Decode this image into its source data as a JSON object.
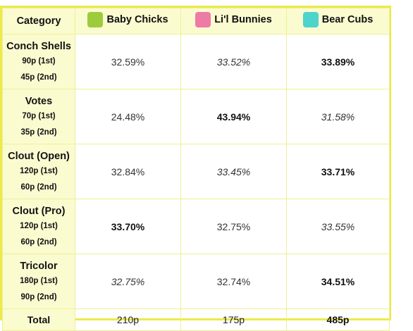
{
  "header": {
    "category_label": "Category",
    "teams": [
      {
        "name": "Baby Chicks",
        "color": "#9ccc3c"
      },
      {
        "name": "Li'l Bunnies",
        "color": "#ee7aa6"
      },
      {
        "name": "Bear Cubs",
        "color": "#4fd3cd"
      }
    ]
  },
  "rows": [
    {
      "category": "Conch Shells",
      "first": "90p (1st)",
      "second": "45p (2nd)",
      "values": [
        "32.59%",
        "33.52%",
        "33.89%"
      ]
    },
    {
      "category": "Votes",
      "first": "70p (1st)",
      "second": "35p (2nd)",
      "values": [
        "24.48%",
        "43.94%",
        "31.58%"
      ]
    },
    {
      "category": "Clout (Open)",
      "first": "120p (1st)",
      "second": "60p (2nd)",
      "values": [
        "32.84%",
        "33.45%",
        "33.71%"
      ]
    },
    {
      "category": "Clout (Pro)",
      "first": "120p (1st)",
      "second": "60p (2nd)",
      "values": [
        "33.70%",
        "32.75%",
        "33.55%"
      ]
    },
    {
      "category": "Tricolor",
      "first": "180p (1st)",
      "second": "90p (2nd)",
      "values": [
        "32.75%",
        "32.74%",
        "34.51%"
      ]
    }
  ],
  "totals": {
    "label": "Total",
    "values": [
      "210p",
      "175p",
      "485p"
    ]
  }
}
